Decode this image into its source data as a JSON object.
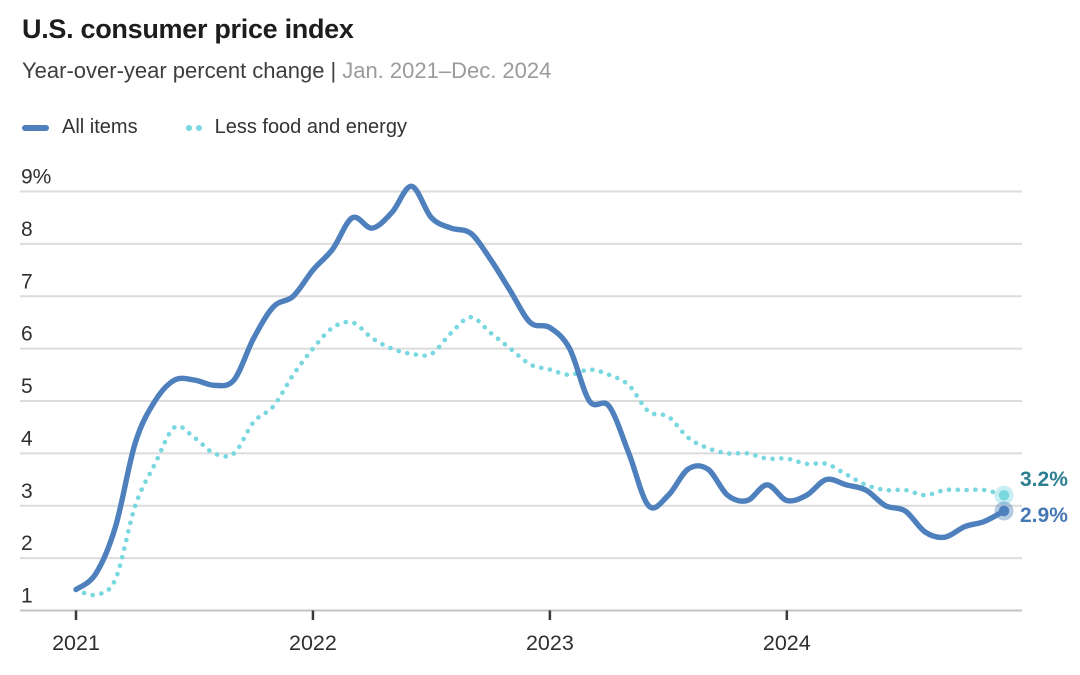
{
  "header": {
    "title": "U.S. consumer price index",
    "subtitle_measure": "Year-over-year percent change",
    "subtitle_separator": "|",
    "subtitle_range": "Jan. 2021–Dec. 2024"
  },
  "colors": {
    "title_text": "#1d1d1f",
    "subtitle_text": "#3e3e40",
    "subtitle_range_text": "#9b9b9e",
    "legend_text": "#333333",
    "tick_text": "#2f2f31",
    "grid_line": "#dcdcdd",
    "axis_line": "#c3c3c5",
    "tick_mark": "#3a3a3c",
    "background": "#ffffff"
  },
  "chart_data": {
    "type": "line",
    "title": "U.S. consumer price index",
    "ylabel": "Year-over-year percent change",
    "x_start": "2021-01",
    "x_interval": "month",
    "n_points": 48,
    "x_tick_months": [
      0,
      12,
      24,
      36
    ],
    "x_tick_labels": [
      "2021",
      "2022",
      "2023",
      "2024"
    ],
    "y_ticks": [
      1,
      2,
      3,
      4,
      5,
      6,
      7,
      8,
      9
    ],
    "y_tick_labels": [
      "1",
      "2",
      "3",
      "4",
      "5",
      "6",
      "7",
      "8",
      "9%"
    ],
    "ylim": [
      1,
      9.6
    ],
    "grid": "horizontal",
    "legend_position": "top-left",
    "series": [
      {
        "name": "All items",
        "style": "solid",
        "color": "#4d80bc",
        "end_label": "2.9%",
        "end_label_color": "#4679b4",
        "values": [
          1.4,
          1.7,
          2.6,
          4.2,
          5.0,
          5.4,
          5.4,
          5.3,
          5.4,
          6.2,
          6.8,
          7.0,
          7.5,
          7.9,
          8.5,
          8.3,
          8.6,
          9.1,
          8.5,
          8.3,
          8.2,
          7.7,
          7.1,
          6.5,
          6.4,
          6.0,
          5.0,
          4.9,
          4.0,
          3.0,
          3.2,
          3.7,
          3.7,
          3.2,
          3.1,
          3.4,
          3.1,
          3.2,
          3.5,
          3.4,
          3.3,
          3.0,
          2.9,
          2.5,
          2.4,
          2.6,
          2.7,
          2.9
        ]
      },
      {
        "name": "Less food and energy",
        "style": "dotted",
        "color": "#79d7e0",
        "end_label": "3.2%",
        "end_label_color": "#2c7f91",
        "values": [
          1.4,
          1.3,
          1.6,
          3.0,
          3.8,
          4.5,
          4.3,
          4.0,
          4.0,
          4.6,
          4.9,
          5.5,
          6.0,
          6.4,
          6.5,
          6.2,
          6.0,
          5.9,
          5.9,
          6.3,
          6.6,
          6.3,
          6.0,
          5.7,
          5.6,
          5.5,
          5.6,
          5.5,
          5.3,
          4.8,
          4.7,
          4.3,
          4.1,
          4.0,
          4.0,
          3.9,
          3.9,
          3.8,
          3.8,
          3.6,
          3.4,
          3.3,
          3.3,
          3.2,
          3.3,
          3.3,
          3.3,
          3.2
        ]
      }
    ]
  }
}
